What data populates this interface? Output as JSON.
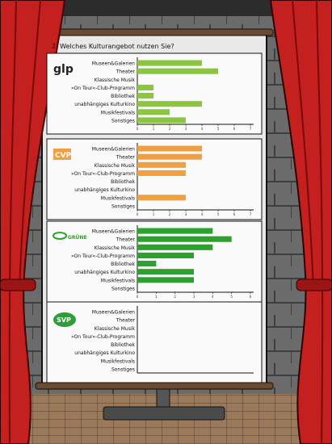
{
  "question": "2. Welches Kulturangebot nutzen Sie?",
  "categories": [
    "Museen&Galerien",
    "Theater",
    "Klassische Musik",
    "»On Tour«-Club-Programm",
    "Bibliothek",
    "unabhängiges Kulturkino",
    "Musikfestivals",
    "Sonstiges"
  ],
  "colors": {
    "glp": "#8cc63f",
    "cvp": "#f0a040",
    "gruene": "#2da12d",
    "svp": "#2f9e3a"
  },
  "chart_data": [
    {
      "type": "bar",
      "orientation": "horizontal",
      "party_logo": "glp",
      "logo_text": "glp",
      "categories": [
        "Museen&Galerien",
        "Theater",
        "Klassische Musik",
        "»On Tour«-Club-Programm",
        "Bibliothek",
        "unabhängiges Kulturkino",
        "Musikfestivals",
        "Sonstiges"
      ],
      "values": [
        4,
        5,
        0,
        1,
        1,
        4,
        2,
        3
      ],
      "xlim": [
        0,
        7
      ],
      "xticks": [
        0,
        1,
        2,
        3,
        4,
        5,
        6,
        7
      ],
      "grid": false
    },
    {
      "type": "bar",
      "orientation": "horizontal",
      "party_logo": "cvp",
      "logo_text": "CVP",
      "categories": [
        "Museen&Galerien",
        "Theater",
        "Klassische Musik",
        "»On Tour«-Club-Programm",
        "Bibliothek",
        "unabhängiges Kulturkino",
        "Musikfestivals",
        "Sonstiges"
      ],
      "values": [
        4,
        4,
        3,
        3,
        0,
        0,
        3,
        0
      ],
      "xlim": [
        0,
        7
      ],
      "xticks": [
        0,
        1,
        2,
        3,
        4,
        5,
        6,
        7
      ],
      "grid": false
    },
    {
      "type": "bar",
      "orientation": "horizontal",
      "party_logo": "gruene",
      "logo_text": "GRÜNE",
      "categories": [
        "Museen&Galerien",
        "Theater",
        "Klassische Musik",
        "»On Tour«-Club-Programm",
        "Bibliothek",
        "unabhängiges Kulturkino",
        "Musikfestivals",
        "Sonstiges"
      ],
      "values": [
        4,
        5,
        4,
        3,
        1,
        3,
        3,
        0
      ],
      "xlim": [
        0,
        6
      ],
      "xticks": [
        0,
        1,
        2,
        3,
        4,
        5,
        6
      ],
      "grid": false
    },
    {
      "type": "bar",
      "orientation": "horizontal",
      "party_logo": "svp",
      "logo_text": "SVP",
      "categories": [
        "Museen&Galerien",
        "Theater",
        "Klassische Musik",
        "»On Tour«-Club-Programm",
        "Bibliothek",
        "unabhängiges Kulturkino",
        "Musikfestivals",
        "Sonstiges"
      ],
      "values": [
        0,
        0,
        0,
        0,
        0,
        0,
        0,
        0
      ],
      "xlim": [
        0,
        7
      ],
      "xticks": [],
      "grid": false
    }
  ]
}
